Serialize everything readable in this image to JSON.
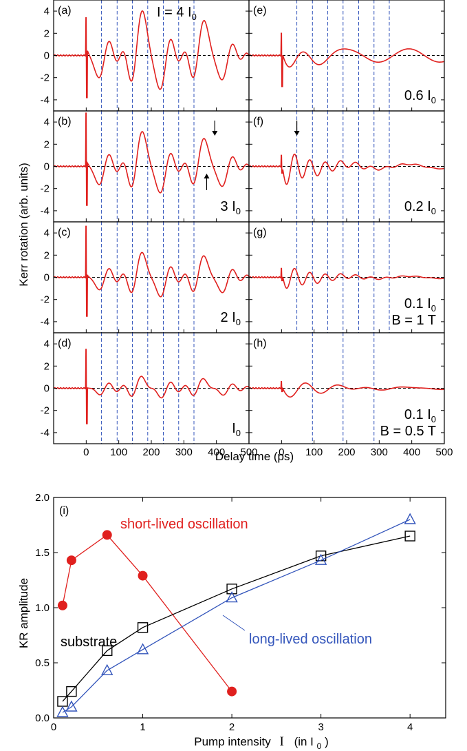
{
  "chart_data": [
    {
      "type": "line",
      "title": "",
      "shared_xlabel": "Delay time (ps)",
      "shared_ylabel": "Kerr rotation (arb. units)",
      "xlim": [
        -100,
        500
      ],
      "ylim": [
        -5,
        5
      ],
      "x_ticks": [
        0,
        100,
        200,
        300,
        400,
        500
      ],
      "y_ticks": [
        -4,
        -2,
        0,
        2,
        4
      ],
      "zero_reference_line": "dashed black at y=0",
      "grid": false,
      "colors": {
        "trace": "#e0201e",
        "period_marker": "#3355bb",
        "zero_line": "#000000"
      },
      "panels": [
        {
          "id": "a",
          "label": "(a)",
          "annotation": "I = 4 I",
          "annotation_sub": "0",
          "period_markers": [
            47,
            95,
            142,
            189,
            237,
            284,
            331
          ],
          "trace": {
            "spike_at": 0,
            "spike_max": 3.4,
            "spike_min": -3.8,
            "period": 95,
            "envelope": [
              [
                10,
                0.6
              ],
              [
                50,
                1.0
              ],
              [
                100,
                1.3
              ],
              [
                200,
                1.4
              ],
              [
                300,
                1.2
              ],
              [
                400,
                1.0
              ],
              [
                500,
                0.8
              ]
            ],
            "offset_wave": 2.1,
            "beat": true
          }
        },
        {
          "id": "b",
          "label": "(b)",
          "annotation": "3 I",
          "annotation_sub": "0",
          "arrows": [
            {
              "x": 395,
              "direction": "down"
            },
            {
              "x": 370,
              "direction": "up"
            }
          ],
          "period_markers": [
            47,
            95,
            142,
            189,
            237,
            284,
            331
          ],
          "trace": {
            "spike_at": 0,
            "spike_max": 4.8,
            "spike_min": -3.5,
            "period": 95,
            "envelope": [
              [
                10,
                0.5
              ],
              [
                50,
                0.9
              ],
              [
                100,
                1.1
              ],
              [
                200,
                1.2
              ],
              [
                300,
                1.0
              ],
              [
                400,
                0.9
              ],
              [
                500,
                0.7
              ]
            ],
            "offset_wave": 1.9,
            "beat": true
          }
        },
        {
          "id": "c",
          "label": "(c)",
          "annotation": "2 I",
          "annotation_sub": "0",
          "period_markers": [
            47,
            95,
            142,
            189,
            237,
            284,
            331
          ],
          "trace": {
            "spike_at": 0,
            "spike_max": 4.6,
            "spike_min": -3.5,
            "period": 95,
            "envelope": [
              [
                10,
                0.4
              ],
              [
                50,
                0.7
              ],
              [
                100,
                0.9
              ],
              [
                200,
                1.0
              ],
              [
                300,
                0.9
              ],
              [
                400,
                0.8
              ],
              [
                500,
                0.6
              ]
            ],
            "offset_wave": 1.6,
            "beat": true
          }
        },
        {
          "id": "d",
          "label": "(d)",
          "annotation": "I",
          "annotation_sub": "0",
          "period_markers": [
            47,
            95,
            142,
            189,
            237,
            284,
            331
          ],
          "trace": {
            "spike_at": 0,
            "spike_max": 3.5,
            "spike_min": -3.2,
            "period": 95,
            "envelope": [
              [
                10,
                0.3
              ],
              [
                50,
                0.5
              ],
              [
                100,
                0.6
              ],
              [
                200,
                0.7
              ],
              [
                300,
                0.6
              ],
              [
                400,
                0.5
              ],
              [
                500,
                0.4
              ]
            ],
            "offset_wave": 1.0,
            "beat": true
          }
        },
        {
          "id": "e",
          "label": "(e)",
          "annotation": "0.6 I",
          "annotation_sub": "0",
          "period_markers": [
            47,
            95,
            142,
            189,
            237,
            284,
            331
          ],
          "trace": {
            "spike_at": 0,
            "spike_max": 2.0,
            "spike_min": -2.8,
            "period": 95,
            "short_amp": 2.0,
            "short_tau": 60,
            "long_amp": 0.6
          }
        },
        {
          "id": "f",
          "label": "(f)",
          "annotation": "0.2 I",
          "annotation_sub": "0",
          "arrows": [
            {
              "x": 47,
              "direction": "down"
            }
          ],
          "period_markers": [
            47,
            95,
            142,
            189,
            237,
            284,
            331
          ],
          "trace": {
            "spike_at": 0,
            "spike_max": 1.0,
            "spike_min": -0.6,
            "period": 47,
            "short_amp": 1.6,
            "short_tau": 120,
            "long_amp": 0.2
          }
        },
        {
          "id": "g",
          "label": "(g)",
          "annotation": "0.1 I",
          "annotation_sub": "0",
          "annotation2": "B = 1 T",
          "period_markers": [
            47,
            95,
            142,
            189,
            237,
            284,
            331
          ],
          "trace": {
            "spike_at": 0,
            "spike_max": 0.8,
            "spike_min": -0.3,
            "period": 47,
            "short_amp": 1.1,
            "short_tau": 120,
            "long_amp": 0.1
          }
        },
        {
          "id": "h",
          "label": "(h)",
          "annotation": "0.1 I",
          "annotation_sub": "0",
          "annotation2": "B = 0.5 T",
          "period_markers": [
            95,
            189,
            284
          ],
          "trace": {
            "spike_at": 0,
            "spike_max": 0.6,
            "spike_min": -0.3,
            "period": 95,
            "short_amp": 1.0,
            "short_tau": 120,
            "long_amp": 0.1
          }
        }
      ]
    },
    {
      "type": "scatter",
      "label": "(i)",
      "xlabel": "Pump intensity",
      "xlabel_symbol": "I",
      "xlabel_unit": "(in I",
      "xlabel_unit_sub": "0",
      "xlabel_unit_close": ")",
      "ylabel": "KR amplitude",
      "xlim": [
        0,
        4.4
      ],
      "ylim": [
        0,
        2.0
      ],
      "x_ticks": [
        0,
        1,
        2,
        3,
        4
      ],
      "y_ticks": [
        0.0,
        0.5,
        1.0,
        1.5,
        2.0
      ],
      "grid": false,
      "series": [
        {
          "name": "short-lived oscillation",
          "color": "#e0201e",
          "marker": "filled-circle",
          "x": [
            0.1,
            0.2,
            0.6,
            1,
            2
          ],
          "y": [
            1.02,
            1.43,
            1.66,
            1.29,
            0.24
          ]
        },
        {
          "name": "substrate",
          "color": "#000000",
          "marker": "open-square",
          "x": [
            0.1,
            0.2,
            0.6,
            1,
            2,
            3,
            4
          ],
          "y": [
            0.15,
            0.24,
            0.61,
            0.82,
            1.17,
            1.47,
            1.65
          ]
        },
        {
          "name": "long-lived oscillation",
          "color": "#3355bb",
          "marker": "open-triangle",
          "x": [
            0.1,
            0.2,
            0.6,
            1,
            2,
            3,
            4
          ],
          "y": [
            0.05,
            0.1,
            0.43,
            0.62,
            1.09,
            1.43,
            1.8
          ]
        }
      ]
    }
  ]
}
